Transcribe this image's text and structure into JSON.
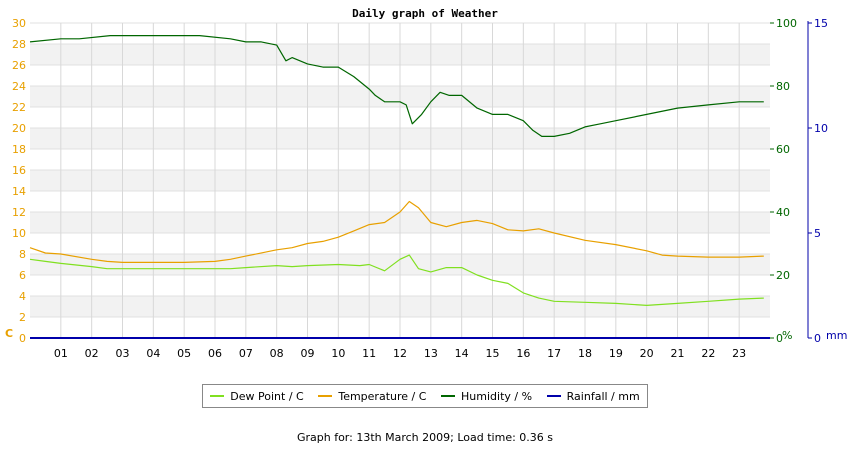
{
  "chart_data": {
    "type": "line",
    "title": "Daily graph of Weather",
    "x_label": "",
    "x_ticks": [
      "01",
      "02",
      "03",
      "04",
      "05",
      "06",
      "07",
      "08",
      "09",
      "10",
      "11",
      "12",
      "13",
      "14",
      "15",
      "16",
      "17",
      "18",
      "19",
      "20",
      "21",
      "22",
      "23"
    ],
    "x_range_hours": [
      0,
      24
    ],
    "axes": {
      "left": {
        "unit_label": "C",
        "range": [
          0,
          30
        ],
        "ticks": [
          0,
          2,
          4,
          6,
          8,
          10,
          12,
          14,
          16,
          18,
          20,
          22,
          24,
          26,
          28,
          30
        ],
        "color": "#e8a000"
      },
      "humidity": {
        "unit_label": "%",
        "range": [
          0,
          100
        ],
        "ticks": [
          0,
          20,
          40,
          60,
          80,
          100
        ],
        "color": "#006600"
      },
      "rainfall": {
        "unit_label": "mm",
        "range": [
          0,
          15
        ],
        "ticks": [
          0,
          5,
          10,
          15
        ],
        "color": "#0000aa"
      }
    },
    "grid": true,
    "series": [
      {
        "name": "Dew Point / C",
        "axis": "left",
        "color": "#80e020",
        "x": [
          0.0,
          0.5,
          1.0,
          2.0,
          2.5,
          3.0,
          4.0,
          5.0,
          6.0,
          6.5,
          7.0,
          8.0,
          8.5,
          9.0,
          10.0,
          10.7,
          11.0,
          11.5,
          12.0,
          12.3,
          12.6,
          13.0,
          13.5,
          14.0,
          14.5,
          15.0,
          15.5,
          16.0,
          16.5,
          17.0,
          18.0,
          19.0,
          20.0,
          21.0,
          22.0,
          23.0,
          23.8
        ],
        "values": [
          7.5,
          7.3,
          7.1,
          6.8,
          6.6,
          6.6,
          6.6,
          6.6,
          6.6,
          6.6,
          6.7,
          6.9,
          6.8,
          6.9,
          7.0,
          6.9,
          7.0,
          6.4,
          7.5,
          7.9,
          6.6,
          6.3,
          6.7,
          6.7,
          6.0,
          5.5,
          5.2,
          4.3,
          3.8,
          3.5,
          3.4,
          3.3,
          3.1,
          3.3,
          3.5,
          3.7,
          3.8
        ]
      },
      {
        "name": "Temperature / C",
        "axis": "left",
        "color": "#e8a000",
        "x": [
          0.0,
          0.5,
          1.0,
          2.0,
          2.5,
          3.0,
          4.0,
          5.0,
          6.0,
          6.5,
          7.0,
          8.0,
          8.5,
          9.0,
          9.5,
          10.0,
          10.5,
          11.0,
          11.5,
          12.0,
          12.3,
          12.6,
          13.0,
          13.5,
          14.0,
          14.5,
          15.0,
          15.5,
          16.0,
          16.5,
          17.0,
          18.0,
          19.0,
          20.0,
          20.5,
          21.0,
          22.0,
          23.0,
          23.8
        ],
        "values": [
          8.6,
          8.1,
          8.0,
          7.5,
          7.3,
          7.2,
          7.2,
          7.2,
          7.3,
          7.5,
          7.8,
          8.4,
          8.6,
          9.0,
          9.2,
          9.6,
          10.2,
          10.8,
          11.0,
          12.0,
          13.0,
          12.4,
          11.0,
          10.6,
          11.0,
          11.2,
          10.9,
          10.3,
          10.2,
          10.4,
          10.0,
          9.3,
          8.9,
          8.3,
          7.9,
          7.8,
          7.7,
          7.7,
          7.8
        ]
      },
      {
        "name": "Humidity / %",
        "axis": "humidity",
        "color": "#006600",
        "x": [
          0.0,
          1.0,
          1.6,
          2.6,
          4.0,
          5.5,
          6.5,
          7.0,
          7.5,
          8.0,
          8.3,
          8.5,
          9.0,
          9.5,
          10.0,
          10.5,
          11.0,
          11.2,
          11.5,
          12.0,
          12.2,
          12.4,
          12.7,
          13.0,
          13.3,
          13.6,
          14.0,
          14.5,
          15.0,
          15.5,
          16.0,
          16.3,
          16.6,
          17.0,
          17.5,
          18.0,
          18.5,
          19.0,
          20.0,
          21.0,
          22.0,
          23.0,
          23.8
        ],
        "values": [
          94,
          95,
          95,
          96,
          96,
          96,
          95,
          94,
          94,
          93,
          88,
          89,
          87,
          86,
          86,
          83,
          79,
          77,
          75,
          75,
          74,
          68,
          71,
          75,
          78,
          77,
          77,
          73,
          71,
          71,
          69,
          66,
          64,
          64,
          65,
          67,
          68,
          69,
          71,
          73,
          74,
          75,
          75
        ]
      },
      {
        "name": "Rainfall / mm",
        "axis": "rainfall",
        "color": "#0000aa",
        "x": [
          0.0,
          23.8
        ],
        "values": [
          0,
          0
        ]
      }
    ],
    "legend_position": "bottom"
  },
  "legend": [
    "Dew Point / C",
    "Temperature / C",
    "Humidity / %",
    "Rainfall / mm"
  ],
  "footer": "Graph for: 13th March 2009; Load time: 0.36 s"
}
